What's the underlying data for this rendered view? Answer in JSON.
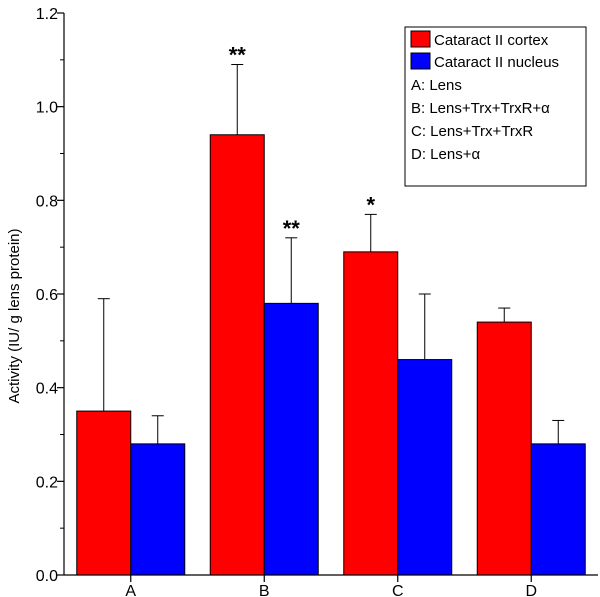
{
  "chart_data": {
    "type": "bar",
    "title": "",
    "xlabel": "",
    "ylabel": "Activity (IU/  g lens protein)",
    "ylim": [
      0,
      1.2
    ],
    "yticks": [
      "0.0",
      "0.2",
      "0.4",
      "0.6",
      "0.8",
      "1.0",
      "1.2"
    ],
    "categories": [
      "A",
      "B",
      "C",
      "D"
    ],
    "series": [
      {
        "name": "Cataract II cortex",
        "color": "#ff0000",
        "values": [
          0.35,
          0.94,
          0.69,
          0.54
        ],
        "errors": [
          0.24,
          0.15,
          0.08,
          0.03
        ],
        "significance": [
          "",
          "**",
          "*",
          ""
        ]
      },
      {
        "name": "Cataract II nucleus",
        "color": "#0000ff",
        "values": [
          0.28,
          0.58,
          0.46,
          0.28
        ],
        "errors": [
          0.06,
          0.14,
          0.14,
          0.05
        ],
        "significance": [
          "",
          "**",
          "",
          ""
        ]
      }
    ],
    "legend": {
      "position": "top-right",
      "notes": [
        "A: Lens",
        "B: Lens+Trx+TrxR+α",
        "C: Lens+Trx+TrxR",
        "D: Lens+α"
      ]
    }
  }
}
